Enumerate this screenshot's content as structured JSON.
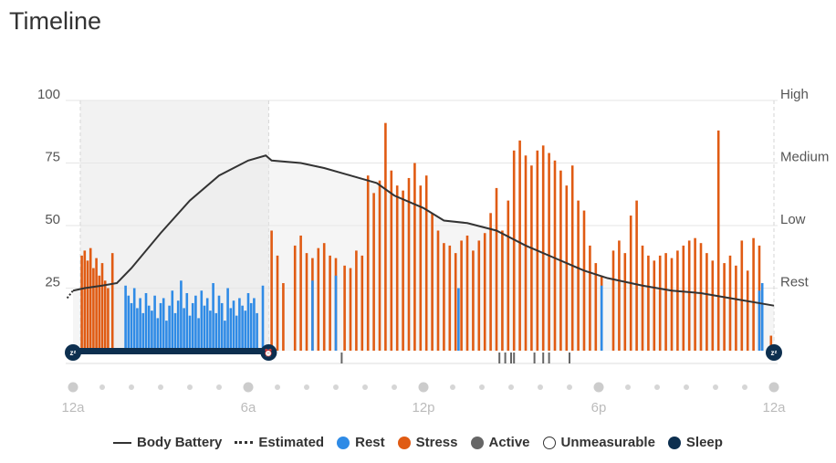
{
  "title": "Timeline",
  "colors": {
    "rest": "#2f8be6",
    "stress": "#e05b13",
    "active": "#666666",
    "sleep": "#0d2f4f",
    "battery": "#333333",
    "grid": "#e6e6e6"
  },
  "legend": {
    "body_battery": "Body Battery",
    "estimated": "Estimated",
    "rest": "Rest",
    "stress": "Stress",
    "active": "Active",
    "unmeasurable": "Unmeasurable",
    "sleep": "Sleep"
  },
  "chart_data": {
    "type": "bar",
    "y_ticks_left": [
      "100",
      "75",
      "50",
      "25"
    ],
    "y_ticks_right": [
      "High",
      "Medium",
      "Low",
      "Rest"
    ],
    "ylim": [
      0,
      100
    ],
    "x_labels": [
      "12a",
      "6a",
      "12p",
      "6p",
      "12a"
    ],
    "x_range_hours": [
      0,
      24
    ],
    "sleep_window_hours": [
      0.25,
      6.7
    ],
    "stress_bars": [
      [
        0.3,
        38
      ],
      [
        0.4,
        40
      ],
      [
        0.5,
        36
      ],
      [
        0.6,
        41
      ],
      [
        0.7,
        33
      ],
      [
        0.8,
        37
      ],
      [
        0.9,
        30
      ],
      [
        1.0,
        35
      ],
      [
        1.1,
        28
      ],
      [
        1.2,
        25
      ],
      [
        1.35,
        39
      ],
      [
        6.8,
        48
      ],
      [
        7.0,
        38
      ],
      [
        7.2,
        27
      ],
      [
        7.6,
        42
      ],
      [
        7.8,
        46
      ],
      [
        8.0,
        39
      ],
      [
        8.2,
        37
      ],
      [
        8.4,
        41
      ],
      [
        8.6,
        43
      ],
      [
        8.8,
        38
      ],
      [
        9.0,
        37
      ],
      [
        9.3,
        34
      ],
      [
        9.5,
        33
      ],
      [
        9.7,
        40
      ],
      [
        9.9,
        38
      ],
      [
        10.1,
        70
      ],
      [
        10.3,
        63
      ],
      [
        10.5,
        68
      ],
      [
        10.7,
        91
      ],
      [
        10.9,
        72
      ],
      [
        11.1,
        66
      ],
      [
        11.3,
        64
      ],
      [
        11.5,
        69
      ],
      [
        11.7,
        75
      ],
      [
        11.9,
        66
      ],
      [
        12.1,
        70
      ],
      [
        12.3,
        55
      ],
      [
        12.5,
        48
      ],
      [
        12.7,
        43
      ],
      [
        12.9,
        42
      ],
      [
        13.1,
        39
      ],
      [
        13.3,
        44
      ],
      [
        13.5,
        46
      ],
      [
        13.7,
        40
      ],
      [
        13.9,
        44
      ],
      [
        14.1,
        47
      ],
      [
        14.3,
        55
      ],
      [
        14.5,
        65
      ],
      [
        14.7,
        48
      ],
      [
        14.9,
        60
      ],
      [
        15.1,
        80
      ],
      [
        15.3,
        84
      ],
      [
        15.5,
        78
      ],
      [
        15.7,
        74
      ],
      [
        15.9,
        80
      ],
      [
        16.1,
        82
      ],
      [
        16.3,
        79
      ],
      [
        16.5,
        76
      ],
      [
        16.7,
        72
      ],
      [
        16.9,
        66
      ],
      [
        17.1,
        74
      ],
      [
        17.3,
        60
      ],
      [
        17.5,
        56
      ],
      [
        17.7,
        42
      ],
      [
        17.9,
        35
      ],
      [
        18.1,
        30
      ],
      [
        18.5,
        40
      ],
      [
        18.7,
        44
      ],
      [
        18.9,
        39
      ],
      [
        19.1,
        54
      ],
      [
        19.3,
        60
      ],
      [
        19.5,
        42
      ],
      [
        19.7,
        38
      ],
      [
        19.9,
        36
      ],
      [
        20.1,
        38
      ],
      [
        20.3,
        39
      ],
      [
        20.5,
        37
      ],
      [
        20.7,
        40
      ],
      [
        20.9,
        42
      ],
      [
        21.1,
        44
      ],
      [
        21.3,
        45
      ],
      [
        21.5,
        43
      ],
      [
        21.7,
        39
      ],
      [
        21.9,
        36
      ],
      [
        22.1,
        88
      ],
      [
        22.3,
        35
      ],
      [
        22.5,
        38
      ],
      [
        22.7,
        34
      ],
      [
        22.9,
        44
      ],
      [
        23.1,
        32
      ],
      [
        23.3,
        45
      ],
      [
        23.5,
        42
      ],
      [
        23.9,
        6
      ]
    ],
    "rest_bars": [
      [
        1.8,
        26
      ],
      [
        1.9,
        22
      ],
      [
        2.0,
        19
      ],
      [
        2.1,
        25
      ],
      [
        2.2,
        17
      ],
      [
        2.3,
        21
      ],
      [
        2.4,
        15
      ],
      [
        2.5,
        23
      ],
      [
        2.6,
        18
      ],
      [
        2.7,
        16
      ],
      [
        2.8,
        22
      ],
      [
        2.9,
        13
      ],
      [
        3.0,
        19
      ],
      [
        3.1,
        21
      ],
      [
        3.2,
        12
      ],
      [
        3.3,
        18
      ],
      [
        3.4,
        24
      ],
      [
        3.5,
        15
      ],
      [
        3.6,
        20
      ],
      [
        3.7,
        28
      ],
      [
        3.8,
        17
      ],
      [
        3.9,
        23
      ],
      [
        4.0,
        14
      ],
      [
        4.1,
        19
      ],
      [
        4.2,
        22
      ],
      [
        4.3,
        13
      ],
      [
        4.4,
        24
      ],
      [
        4.5,
        18
      ],
      [
        4.6,
        21
      ],
      [
        4.7,
        16
      ],
      [
        4.8,
        27
      ],
      [
        4.9,
        15
      ],
      [
        5.0,
        22
      ],
      [
        5.1,
        19
      ],
      [
        5.2,
        12
      ],
      [
        5.3,
        25
      ],
      [
        5.4,
        17
      ],
      [
        5.5,
        20
      ],
      [
        5.6,
        14
      ],
      [
        5.7,
        21
      ],
      [
        5.8,
        18
      ],
      [
        5.9,
        16
      ],
      [
        6.0,
        23
      ],
      [
        6.1,
        19
      ],
      [
        6.2,
        21
      ],
      [
        6.3,
        15
      ],
      [
        6.5,
        26
      ],
      [
        8.2,
        28
      ],
      [
        9.0,
        30
      ],
      [
        13.2,
        25
      ],
      [
        18.1,
        26
      ],
      [
        23.5,
        24
      ],
      [
        23.6,
        27
      ]
    ],
    "active_marks": [
      9.2,
      14.6,
      14.8,
      15.0,
      15.1,
      15.8,
      16.1,
      16.3,
      17.0
    ],
    "battery_line": [
      [
        0,
        24
      ],
      [
        0.4,
        25
      ],
      [
        1.0,
        26
      ],
      [
        1.5,
        27
      ],
      [
        2.0,
        33
      ],
      [
        3.0,
        47
      ],
      [
        4.0,
        60
      ],
      [
        5.0,
        70
      ],
      [
        6.0,
        76
      ],
      [
        6.6,
        78
      ],
      [
        6.8,
        76
      ],
      [
        7.8,
        75
      ],
      [
        8.6,
        73
      ],
      [
        9.5,
        70
      ],
      [
        10.4,
        67
      ],
      [
        11.0,
        62
      ],
      [
        12.0,
        57
      ],
      [
        12.7,
        52
      ],
      [
        13.5,
        51
      ],
      [
        14.5,
        48
      ],
      [
        15.5,
        42
      ],
      [
        16.5,
        37
      ],
      [
        17.5,
        32
      ],
      [
        18.3,
        29
      ],
      [
        19.5,
        26
      ],
      [
        20.5,
        24
      ],
      [
        21.5,
        23
      ],
      [
        22.5,
        21
      ],
      [
        23.5,
        19
      ],
      [
        24,
        18
      ]
    ],
    "battery_estimated": [
      [
        -0.2,
        21
      ],
      [
        0,
        24
      ]
    ]
  }
}
